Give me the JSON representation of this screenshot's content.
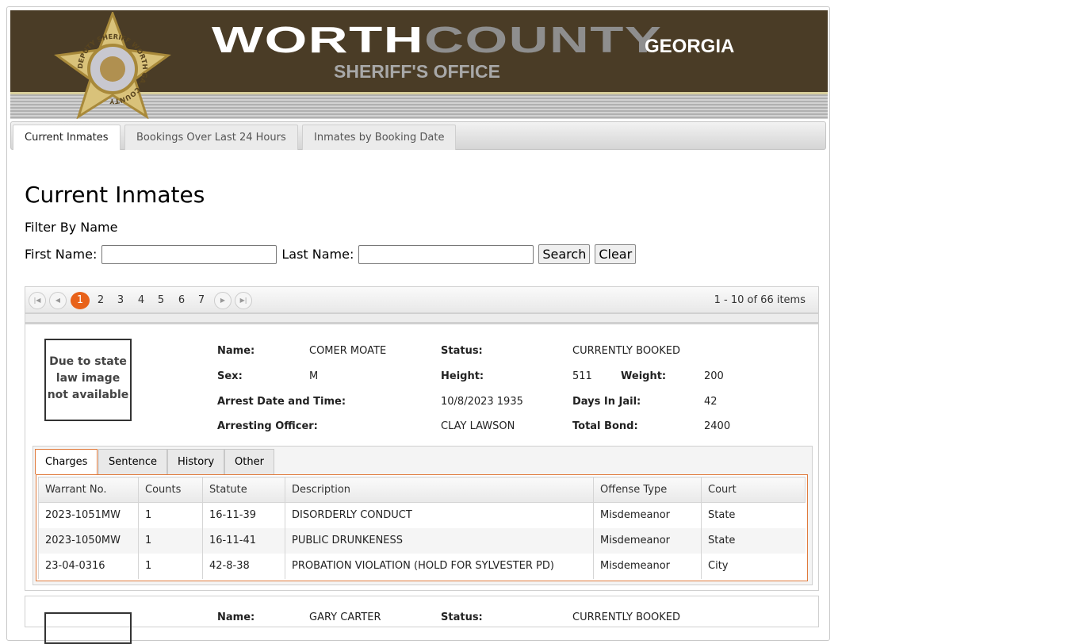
{
  "header": {
    "logo_word1": "WORTH",
    "logo_word2": "COUNTY",
    "logo_state": "GEORGIA",
    "logo_sub": "SHERIFF'S OFFICE",
    "badge_text": "DEPUTY SHERIFF WORTH GA. COUNTY"
  },
  "nav": {
    "tabs": [
      {
        "label": "Current Inmates"
      },
      {
        "label": "Bookings Over Last 24 Hours"
      },
      {
        "label": "Inmates by Booking Date"
      }
    ]
  },
  "page": {
    "title": "Current Inmates",
    "filter_label": "Filter By Name",
    "first_name_label": "First Name:",
    "first_name_value": "",
    "last_name_label": "Last Name:",
    "last_name_value": "",
    "search_label": "Search",
    "clear_label": "Clear"
  },
  "pager": {
    "pages": [
      "1",
      "2",
      "3",
      "4",
      "5",
      "6",
      "7"
    ],
    "current": "1",
    "info": "1 - 10 of 66 items"
  },
  "records": [
    {
      "photo_text": "Due to state law image not available",
      "name_label": "Name:",
      "name": "COMER MOATE",
      "status_label": "Status:",
      "status": "CURRENTLY BOOKED",
      "sex_label": "Sex:",
      "sex": "M",
      "height_label": "Height:",
      "height": "511",
      "weight_label": "Weight:",
      "weight": "200",
      "arrest_label": "Arrest Date and Time:",
      "arrest": "10/8/2023 1935",
      "days_label": "Days In Jail:",
      "days": "42",
      "officer_label": "Arresting Officer:",
      "officer": "CLAY LAWSON",
      "bond_label": "Total Bond:",
      "bond": "2400",
      "tabs": [
        "Charges",
        "Sentence",
        "History",
        "Other"
      ],
      "columns": [
        "Warrant No.",
        "Counts",
        "Statute",
        "Description",
        "Offense Type",
        "Court"
      ],
      "charges": [
        [
          "2023-1051MW",
          "1",
          "16-11-39",
          "DISORDERLY CONDUCT",
          "Misdemeanor",
          "State"
        ],
        [
          "2023-1050MW",
          "1",
          "16-11-41",
          "PUBLIC DRUNKENESS",
          "Misdemeanor",
          "State"
        ],
        [
          "23-04-0316",
          "1",
          "42-8-38",
          "PROBATION VIOLATION (HOLD FOR SYLVESTER PD)",
          "Misdemeanor",
          "City"
        ]
      ]
    },
    {
      "name_label": "Name:",
      "name": "GARY CARTER",
      "status_label": "Status:",
      "status": "CURRENTLY BOOKED"
    }
  ]
}
